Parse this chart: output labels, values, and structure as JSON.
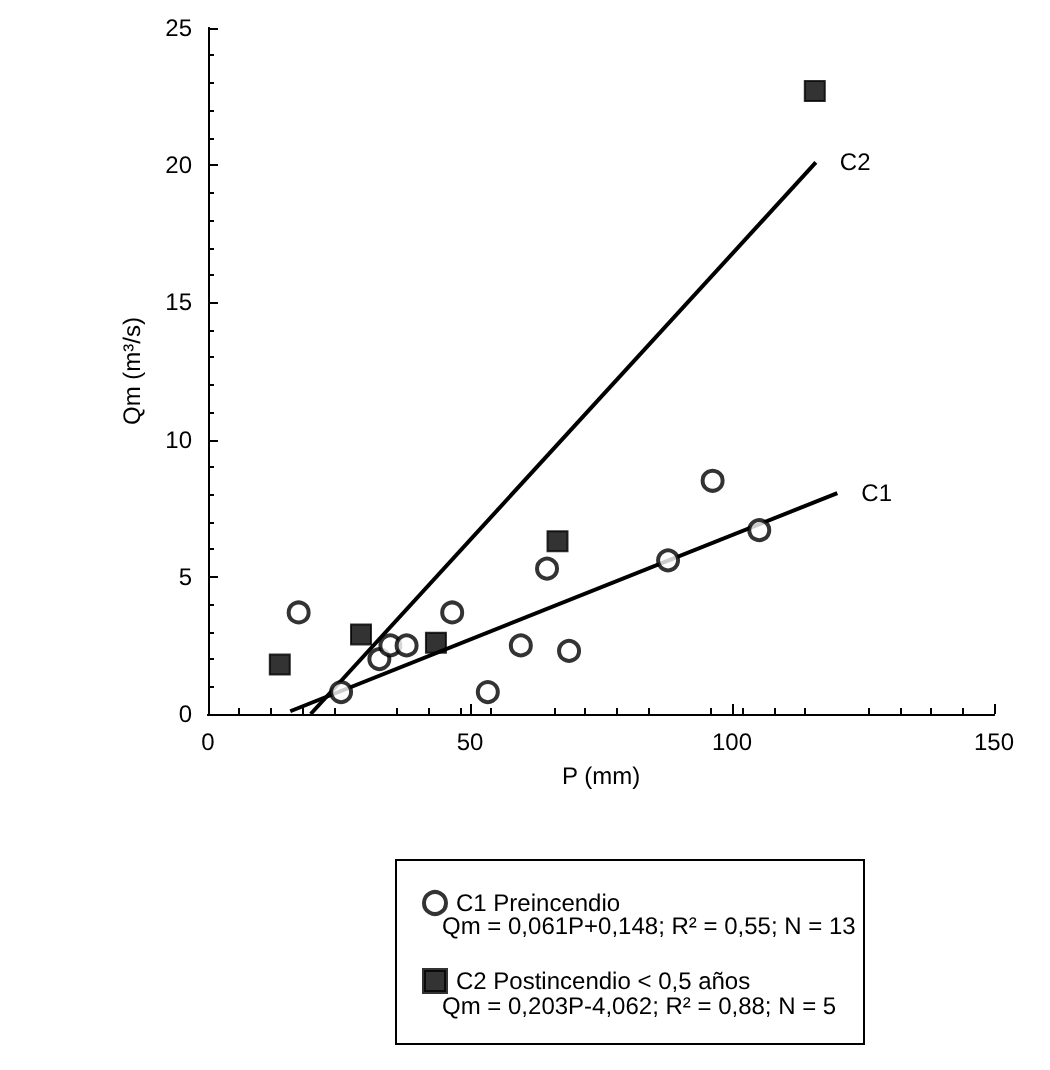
{
  "chart_data": {
    "type": "scatter",
    "xlabel": "P (mm)",
    "ylabel": "Qm (m³/s)",
    "xlim": [
      0,
      150
    ],
    "ylim": [
      0,
      25
    ],
    "xticks": [
      0,
      50,
      100,
      150
    ],
    "yticks": [
      0,
      5,
      10,
      15,
      20,
      25
    ],
    "grid": false,
    "legend": "bottom",
    "series": [
      {
        "name": "C1 Preincendio",
        "marker": "circle",
        "color": "#000000",
        "x": [
          17.3,
          25.4,
          32.7,
          34.8,
          37.9,
          46.6,
          53.4,
          59.7,
          64.7,
          68.9,
          87.8,
          96.3,
          105.2
        ],
        "values": [
          3.7,
          0.8,
          2.0,
          2.5,
          2.5,
          3.7,
          0.8,
          2.5,
          5.3,
          2.3,
          5.6,
          8.5,
          6.7
        ]
      },
      {
        "name": "C2 Postincendio < 0,5 años",
        "marker": "square",
        "color": "#000000",
        "x": [
          13.7,
          29.2,
          43.5,
          66.7,
          115.8
        ],
        "values": [
          1.8,
          2.9,
          2.6,
          6.3,
          22.7
        ]
      },
      {
        "name": "C1",
        "type": "line",
        "color": "#000000",
        "x": [
          15.7,
          120.1
        ],
        "values": [
          0.1,
          8.05
        ]
      },
      {
        "name": "C2",
        "type": "line",
        "color": "#000000",
        "x": [
          19.6,
          116
        ],
        "values": [
          0,
          20.1
        ]
      }
    ],
    "annotations": [
      "Qm = 0,061P+0,148; R² = 0,55; N = 13",
      "Qm = 0,203P-4,062; R² = 0,88; N = 5"
    ]
  }
}
